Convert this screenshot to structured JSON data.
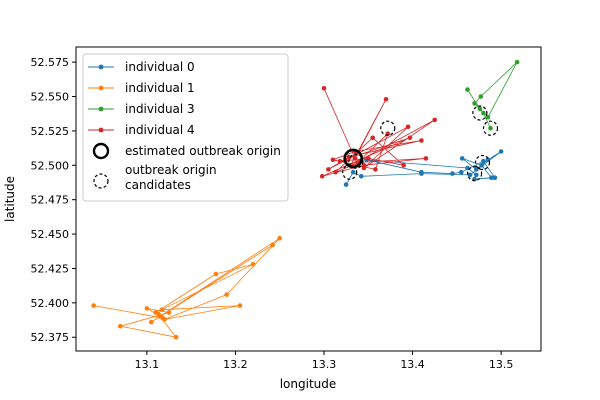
{
  "chart_data": {
    "type": "scatter",
    "title": "",
    "xlabel": "longitude",
    "ylabel": "latitude",
    "xlim": [
      13.02,
      13.545
    ],
    "ylim": [
      52.365,
      52.586
    ],
    "x_ticks": [
      13.1,
      13.2,
      13.3,
      13.4,
      13.5
    ],
    "y_ticks": [
      52.375,
      52.4,
      52.425,
      52.45,
      52.475,
      52.5,
      52.525,
      52.55,
      52.575
    ],
    "x_tick_labels": [
      "13.1",
      "13.2",
      "13.3",
      "13.4",
      "13.5"
    ],
    "y_tick_labels": [
      "52.375",
      "52.400",
      "52.425",
      "52.450",
      "52.475",
      "52.500",
      "52.525",
      "52.550",
      "52.575"
    ],
    "grid": false,
    "legend": {
      "position": "top-left",
      "entries": [
        {
          "label": "individual 0",
          "kind": "line",
          "color": "#1f77b4"
        },
        {
          "label": "individual 1",
          "kind": "line",
          "color": "#ff7f0e"
        },
        {
          "label": "individual 3",
          "kind": "line",
          "color": "#2ca02c"
        },
        {
          "label": "individual 4",
          "kind": "line",
          "color": "#d62728"
        },
        {
          "label": "estimated outbreak origin",
          "kind": "solid-circle",
          "color": "#000000"
        },
        {
          "label": "outbreak origin\ncandidates",
          "kind": "dashed-circle",
          "color": "#000000"
        }
      ]
    },
    "series": [
      {
        "name": "individual 0",
        "color": "#1f77b4",
        "points": [
          [
            13.325,
            52.486
          ],
          [
            13.333,
            52.495
          ],
          [
            13.342,
            52.492
          ],
          [
            13.41,
            52.494
          ],
          [
            13.465,
            52.493
          ],
          [
            13.5,
            52.51
          ],
          [
            13.485,
            52.504
          ],
          [
            13.472,
            52.497
          ],
          [
            13.456,
            52.505
          ],
          [
            13.478,
            52.5
          ],
          [
            13.489,
            52.491
          ],
          [
            13.47,
            52.49
          ],
          [
            13.493,
            52.491
          ],
          [
            13.48,
            52.503
          ],
          [
            13.455,
            52.495
          ],
          [
            13.445,
            52.494
          ],
          [
            13.41,
            52.495
          ],
          [
            13.348,
            52.504
          ],
          [
            13.462,
            52.498
          ],
          [
            13.472,
            52.493
          ]
        ]
      },
      {
        "name": "individual 1",
        "color": "#ff7f0e",
        "points": [
          [
            13.04,
            52.398
          ],
          [
            13.118,
            52.389
          ],
          [
            13.1,
            52.396
          ],
          [
            13.125,
            52.393
          ],
          [
            13.07,
            52.383
          ],
          [
            13.133,
            52.375
          ],
          [
            13.115,
            52.39
          ],
          [
            13.242,
            52.442
          ],
          [
            13.105,
            52.386
          ],
          [
            13.25,
            52.447
          ],
          [
            13.19,
            52.406
          ],
          [
            13.12,
            52.388
          ],
          [
            13.205,
            52.398
          ],
          [
            13.117,
            52.395
          ],
          [
            13.22,
            52.428
          ],
          [
            13.178,
            52.421
          ],
          [
            13.11,
            52.393
          ],
          [
            13.113,
            52.392
          ]
        ]
      },
      {
        "name": "individual 3",
        "color": "#2ca02c",
        "points": [
          [
            13.462,
            52.555
          ],
          [
            13.476,
            52.541
          ],
          [
            13.485,
            52.535
          ],
          [
            13.518,
            52.575
          ],
          [
            13.477,
            52.55
          ],
          [
            13.47,
            52.545
          ],
          [
            13.48,
            52.538
          ],
          [
            13.488,
            52.527
          ]
        ]
      },
      {
        "name": "individual 4",
        "color": "#d62728",
        "points": [
          [
            13.3,
            52.556
          ],
          [
            13.335,
            52.505
          ],
          [
            13.37,
            52.548
          ],
          [
            13.33,
            52.5
          ],
          [
            13.425,
            52.533
          ],
          [
            13.345,
            52.498
          ],
          [
            13.395,
            52.528
          ],
          [
            13.305,
            52.497
          ],
          [
            13.328,
            52.506
          ],
          [
            13.41,
            52.518
          ],
          [
            13.335,
            52.51
          ],
          [
            13.31,
            52.504
          ],
          [
            13.358,
            52.497
          ],
          [
            13.372,
            52.523
          ],
          [
            13.338,
            52.502
          ],
          [
            13.415,
            52.505
          ],
          [
            13.345,
            52.5
          ],
          [
            13.298,
            52.492
          ],
          [
            13.397,
            52.52
          ],
          [
            13.318,
            52.503
          ],
          [
            13.35,
            52.505
          ],
          [
            13.39,
            52.5
          ],
          [
            13.355,
            52.52
          ],
          [
            13.313,
            52.495
          ],
          [
            13.34,
            52.502
          ]
        ]
      }
    ],
    "estimated_origin": [
      13.333,
      52.505
    ],
    "origin_candidates": [
      [
        13.336,
        52.503
      ],
      [
        13.329,
        52.495
      ],
      [
        13.372,
        52.527
      ],
      [
        13.47,
        52.494
      ],
      [
        13.479,
        52.502
      ],
      [
        13.476,
        52.538
      ],
      [
        13.488,
        52.527
      ]
    ]
  }
}
